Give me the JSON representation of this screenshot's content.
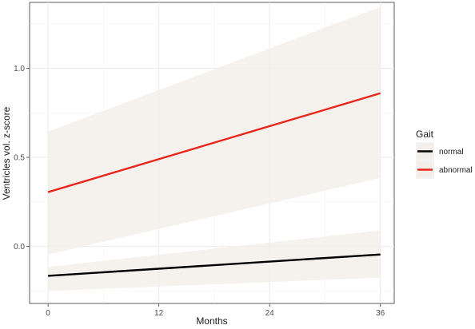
{
  "chart_data": {
    "type": "line",
    "xlabel": "Months",
    "ylabel": "Ventricles vol. z-score",
    "xlim": [
      -2,
      37.5
    ],
    "ylim": [
      -0.32,
      1.37
    ],
    "x_ticks": [
      0,
      12,
      24,
      36
    ],
    "x_tick_labels": [
      "0",
      "12",
      "24",
      "36"
    ],
    "y_ticks": [
      0.0,
      0.5,
      1.0
    ],
    "y_tick_labels": [
      "0.0",
      "0.5",
      "1.0"
    ],
    "grid": true,
    "legend": {
      "title": "Gait",
      "placement": "right"
    },
    "series": [
      {
        "name": "normal",
        "color": "#000000",
        "x": [
          0,
          36
        ],
        "y": [
          -0.165,
          -0.045
        ],
        "ci_lower": [
          -0.25,
          -0.175
        ],
        "ci_upper": [
          -0.115,
          0.09
        ]
      },
      {
        "name": "abnormal",
        "color": "#e8261c",
        "x": [
          0,
          36
        ],
        "y": [
          0.305,
          0.86
        ],
        "ci_lower": [
          -0.045,
          0.385
        ],
        "ci_upper": [
          0.645,
          1.345
        ]
      }
    ],
    "ribbon_color": "#f3eee9"
  }
}
